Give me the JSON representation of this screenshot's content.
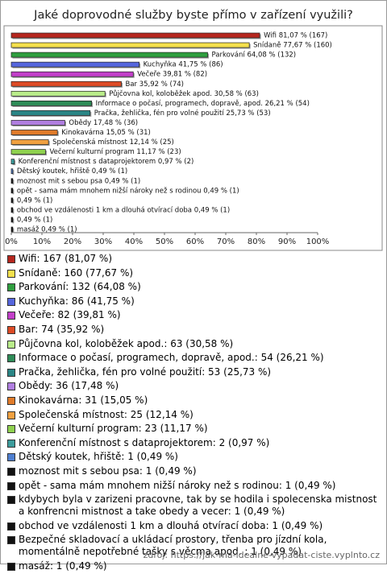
{
  "chart_data": {
    "type": "bar",
    "orientation": "horizontal",
    "title": "Jaké doprovodné služby byste přímo v zařízení využili?",
    "values": [
      81.07,
      77.67,
      64.08,
      41.75,
      39.81,
      35.92,
      30.58,
      26.21,
      25.73,
      17.48,
      15.05,
      12.14,
      11.17,
      0.97,
      0.49,
      0.49,
      0.49,
      0.49,
      0.49,
      0.49,
      0.49
    ],
    "value_labels": [
      "Wifi 81,07 % (167)",
      "Snídaně 77,67 % (160)",
      "Parkování 64,08 % (132)",
      "Kuchyňka 41,75 % (86)",
      "Večeře 39,81 % (82)",
      "Bar 35,92 % (74)",
      "Půjčovna kol, koloběžek apod. 30,58 % (63)",
      "Informace o počasí, programech, dopravě, apod. 26,21 % (54)",
      "Pračka, žehlička, fén pro volné použití 25,73 % (53)",
      "Obědy 17,48 % (36)",
      "Kinokavárna 15,05 % (31)",
      "Společenská místnost 12,14 % (25)",
      "Večerní kulturní program 11,17 % (23)",
      "Konferenční místnost s dataprojektorem 0,97 % (2)",
      "Dětský koutek, hřiště 0,49 % (1)",
      "moznost mit s sebou psa 0,49 % (1)",
      "opět - sama mám mnohem nižší nároky než s rodinou 0,49 % (1)",
      "0,49 % (1)",
      "obchod ve vzdálenosti 1 km a dlouhá otvírací doba 0,49 % (1)",
      "0,49 % (1)",
      "masáž 0,49 % (1)"
    ],
    "colors": [
      "#b5261e",
      "#f4e04d",
      "#2f9e3f",
      "#5566dd",
      "#c23fc9",
      "#dd4b26",
      "#b9ec8a",
      "#2e8b57",
      "#2a8585",
      "#b07ee0",
      "#e07b2a",
      "#f0a040",
      "#8fd14f",
      "#3c9c9c",
      "#4f7fd0",
      "#111111",
      "#111111",
      "#111111",
      "#111111",
      "#111111",
      "#111111"
    ],
    "xlim": [
      0,
      100
    ],
    "xticks": [
      {
        "value": 0,
        "label": "0%"
      },
      {
        "value": 10,
        "label": "10%"
      },
      {
        "value": 20,
        "label": "20%"
      },
      {
        "value": 30,
        "label": "30%"
      },
      {
        "value": 40,
        "label": "40%"
      },
      {
        "value": 50,
        "label": "50%"
      },
      {
        "value": 60,
        "label": "60%"
      },
      {
        "value": 70,
        "label": "70%"
      },
      {
        "value": 80,
        "label": "80%"
      },
      {
        "value": 90,
        "label": "90%"
      },
      {
        "value": 100,
        "label": "100%"
      }
    ],
    "legend_labels": [
      "Wifi: 167 (81,07 %)",
      "Snídaně: 160 (77,67 %)",
      "Parkování: 132 (64,08 %)",
      "Kuchyňka: 86 (41,75 %)",
      "Večeře: 82 (39,81 %)",
      "Bar: 74 (35,92 %)",
      "Půjčovna kol, koloběžek apod.: 63 (30,58 %)",
      "Informace o počasí, programech, dopravě, apod.: 54 (26,21 %)",
      "Pračka, žehlička, fén pro volné použití: 53 (25,73 %)",
      "Obědy: 36 (17,48 %)",
      "Kinokavárna: 31 (15,05 %)",
      "Společenská místnost: 25 (12,14 %)",
      "Večerní kulturní program: 23 (11,17 %)",
      "Konferenční místnost s dataprojektorem: 2 (0,97 %)",
      "Dětský koutek, hřiště: 1 (0,49 %)",
      "moznost mit s sebou psa: 1 (0,49 %)",
      "opět - sama mám mnohem nižší nároky než s rodinou: 1 (0,49 %)",
      "kdybych byla v zarizeni pracovne, tak by se hodila i spolecenska mistnost a konfrencni mistnost a take obedy a vecer: 1 (0,49 %)",
      "obchod ve vzdálenosti 1 km a dlouhá otvírací doba: 1 (0,49 %)",
      "Bezpečné skladovací a  ukládací prostory,   třenba pro jízdní kola, momentálně nepotřebné  tašky s věcma  apod. : 1 (0,49 %)",
      "masáž: 1 (0,49 %)"
    ],
    "source": "zdroj: https://jak-ma-idealne-vypadat-ciste.vyplnto.cz"
  }
}
